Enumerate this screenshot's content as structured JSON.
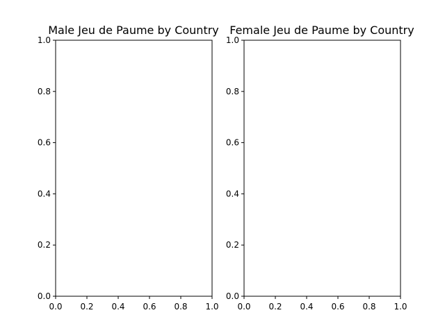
{
  "chart_data": [
    {
      "type": "bar",
      "title": "Male Jeu de Paume by Country",
      "xlabel": "",
      "ylabel": "",
      "categories": [],
      "values": [],
      "xlim": [
        0.0,
        1.0
      ],
      "ylim": [
        0.0,
        1.0
      ],
      "xticks": [
        "0.0",
        "0.2",
        "0.4",
        "0.6",
        "0.8",
        "1.0"
      ],
      "yticks": [
        "0.0",
        "0.2",
        "0.4",
        "0.6",
        "0.8",
        "1.0"
      ],
      "grid": false
    },
    {
      "type": "bar",
      "title": "Female Jeu de Paume by Country",
      "xlabel": "",
      "ylabel": "",
      "categories": [],
      "values": [],
      "xlim": [
        0.0,
        1.0
      ],
      "ylim": [
        0.0,
        1.0
      ],
      "xticks": [
        "0.0",
        "0.2",
        "0.4",
        "0.6",
        "0.8",
        "1.0"
      ],
      "yticks": [
        "0.0",
        "0.2",
        "0.4",
        "0.6",
        "0.8",
        "1.0"
      ],
      "grid": false
    }
  ]
}
